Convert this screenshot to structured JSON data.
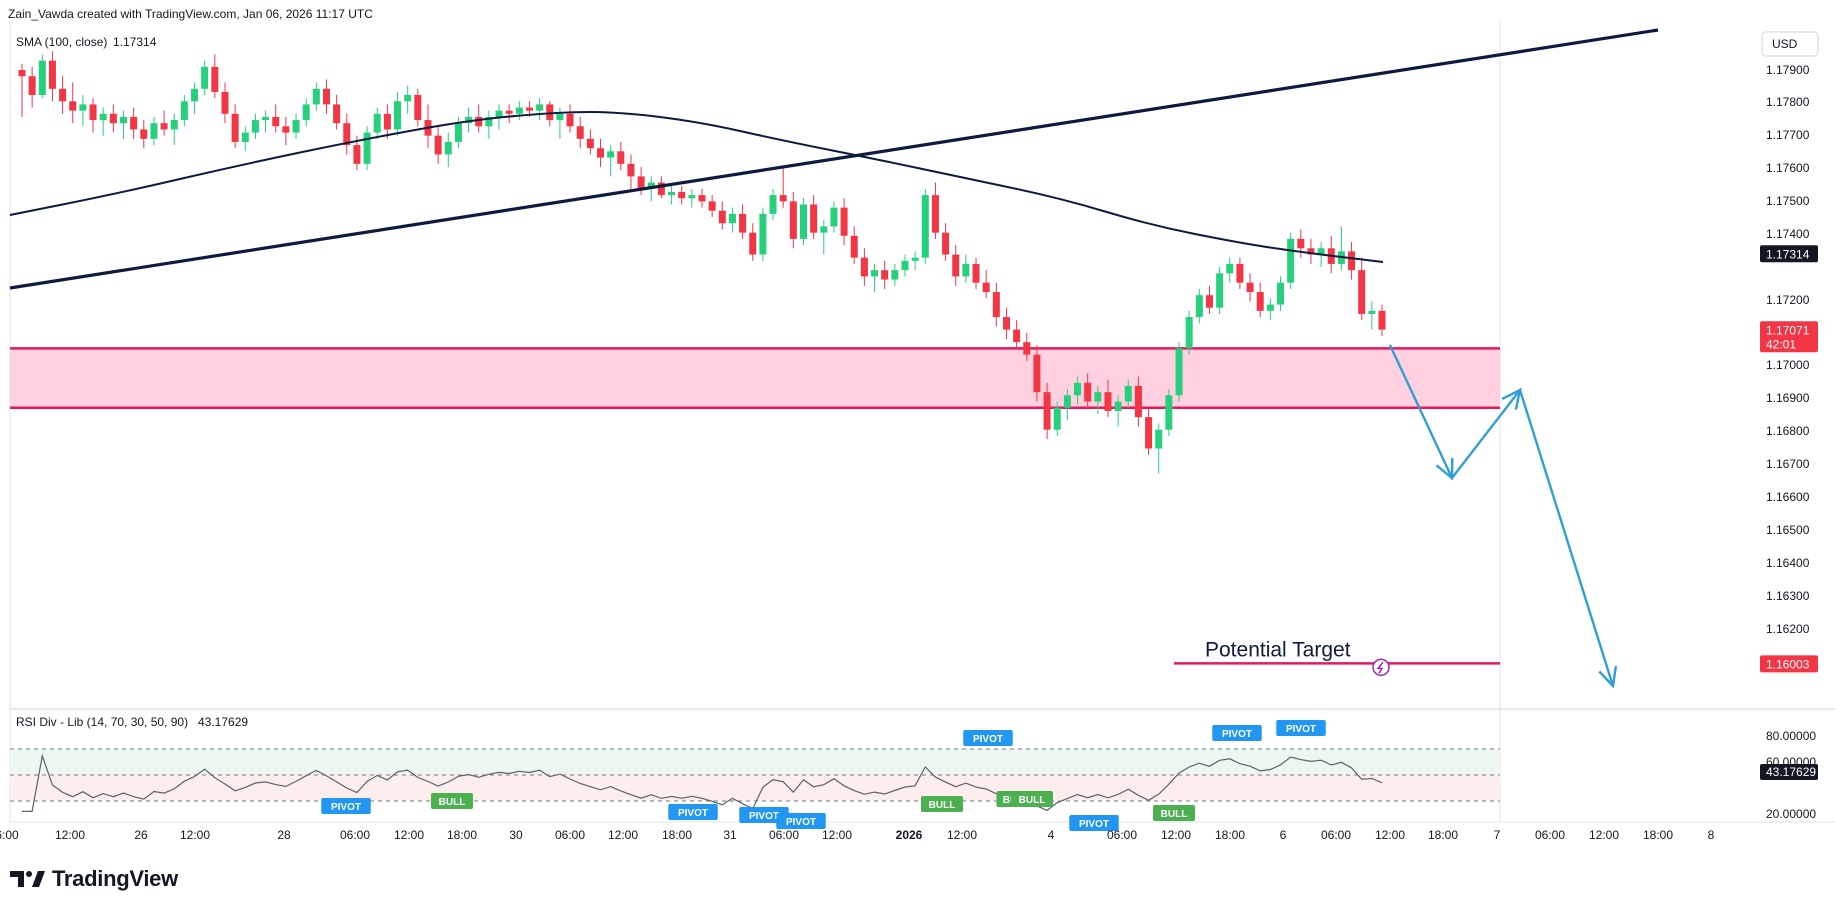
{
  "header": {
    "credit": "Zain_Vawda created with TradingView.com, Jan 06, 2026 11:17 UTC"
  },
  "indicator": {
    "label": "SMA (100, close)",
    "value": "1.17314"
  },
  "currency": "USD",
  "price_axis": [
    "1.17900",
    "1.17800",
    "1.17700",
    "1.17600",
    "1.17500",
    "1.17400",
    "1.17200",
    "1.17100",
    "1.17000",
    "1.16900",
    "1.16800",
    "1.16700",
    "1.16600",
    "1.16500",
    "1.16400",
    "1.16300",
    "1.16200",
    "1.16100"
  ],
  "price_tags": {
    "sma": "1.17314",
    "last": "1.17071",
    "countdown": "42:01",
    "target": "1.16003"
  },
  "annotation": {
    "target_label": "Potential Target"
  },
  "rsi": {
    "label": "RSI Div - Lib (14, 70, 30, 50, 90)",
    "value": "43.17629",
    "axis": [
      "80.00000",
      "60.00000",
      "20.00000"
    ],
    "signals": [
      {
        "text": "PIVOT",
        "kind": "pivot"
      },
      {
        "text": "BULL",
        "kind": "bull"
      },
      {
        "text": "PIVOT",
        "kind": "pivot"
      },
      {
        "text": "PIVOT",
        "kind": "pivot"
      },
      {
        "text": "PIVOT",
        "kind": "pivot"
      },
      {
        "text": "BULL",
        "kind": "bull"
      },
      {
        "text": "PIVOT",
        "kind": "pivot"
      },
      {
        "text": "BU",
        "kind": "bull"
      },
      {
        "text": "BULL",
        "kind": "bull"
      },
      {
        "text": "PIVOT",
        "kind": "pivot"
      },
      {
        "text": "BULL",
        "kind": "bull"
      },
      {
        "text": "PIVOT",
        "kind": "pivot"
      },
      {
        "text": "PIVOT",
        "kind": "pivot"
      }
    ]
  },
  "time_axis": [
    "6:00",
    "12:00",
    "26",
    "12:00",
    "28",
    "06:00",
    "12:00",
    "18:00",
    "30",
    "06:00",
    "12:00",
    "18:00",
    "31",
    "06:00",
    "12:00",
    "2026",
    "12:00",
    "4",
    "06:00",
    "12:00",
    "18:00",
    "6",
    "06:00",
    "12:00",
    "18:00",
    "7",
    "06:00",
    "12:00",
    "18:00",
    "8"
  ],
  "brand": {
    "name": "TradingView"
  },
  "colors": {
    "bull": "#089981",
    "bull_candle": "#26d07c",
    "bear": "#f23645",
    "sma": "#0d1b3e",
    "zone_fill": "#ffd0e0",
    "zone_line": "#e8175d",
    "arrow": "#2f9fd4",
    "pivot_badge": "#2196f3",
    "bull_badge": "#4caf50",
    "tag_dark": "#131722",
    "tag_red": "#f23645"
  },
  "chart_data": {
    "type": "candlestick",
    "instrument_quote": "USD",
    "ylim": [
      1.159,
      1.18
    ],
    "sma_last": 1.17314,
    "last_price": 1.17071,
    "target_price": 1.16003,
    "ohlc": [
      [
        1.179,
        1.1792,
        1.1775,
        1.1788
      ],
      [
        1.1788,
        1.1791,
        1.1778,
        1.1782
      ],
      [
        1.1782,
        1.1795,
        1.1781,
        1.1793
      ],
      [
        1.1793,
        1.1796,
        1.178,
        1.1784
      ],
      [
        1.1784,
        1.1788,
        1.1776,
        1.178
      ],
      [
        1.178,
        1.1786,
        1.1773,
        1.1777
      ],
      [
        1.1777,
        1.1782,
        1.1772,
        1.1779
      ],
      [
        1.1779,
        1.1781,
        1.177,
        1.1774
      ],
      [
        1.1774,
        1.1778,
        1.1769,
        1.1776
      ],
      [
        1.1776,
        1.1779,
        1.177,
        1.1773
      ],
      [
        1.1773,
        1.1777,
        1.1768,
        1.1775
      ],
      [
        1.1775,
        1.1778,
        1.1768,
        1.1771
      ],
      [
        1.1771,
        1.1774,
        1.1765,
        1.1768
      ],
      [
        1.1768,
        1.1775,
        1.1766,
        1.1773
      ],
      [
        1.1773,
        1.1777,
        1.1769,
        1.1771
      ],
      [
        1.1771,
        1.1776,
        1.1766,
        1.1774
      ],
      [
        1.1774,
        1.1782,
        1.1772,
        1.178
      ],
      [
        1.178,
        1.1786,
        1.1776,
        1.1784
      ],
      [
        1.1784,
        1.1793,
        1.1782,
        1.1791
      ],
      [
        1.1791,
        1.1795,
        1.1781,
        1.1783
      ],
      [
        1.1783,
        1.1786,
        1.1773,
        1.1776
      ],
      [
        1.1776,
        1.1779,
        1.1765,
        1.1767
      ],
      [
        1.1767,
        1.1772,
        1.1764,
        1.177
      ],
      [
        1.177,
        1.1776,
        1.1768,
        1.1774
      ],
      [
        1.1774,
        1.1777,
        1.177,
        1.1775
      ],
      [
        1.1775,
        1.1779,
        1.177,
        1.1772
      ],
      [
        1.1772,
        1.1775,
        1.1766,
        1.177
      ],
      [
        1.177,
        1.1776,
        1.1768,
        1.1774
      ],
      [
        1.1774,
        1.1781,
        1.1772,
        1.1779
      ],
      [
        1.1779,
        1.1786,
        1.1777,
        1.1784
      ],
      [
        1.1784,
        1.1787,
        1.1776,
        1.1779
      ],
      [
        1.1779,
        1.1782,
        1.1771,
        1.1773
      ],
      [
        1.1773,
        1.1776,
        1.1763,
        1.1766
      ],
      [
        1.1766,
        1.1769,
        1.1758,
        1.176
      ],
      [
        1.176,
        1.1772,
        1.1758,
        1.177
      ],
      [
        1.177,
        1.1778,
        1.1768,
        1.1776
      ],
      [
        1.1776,
        1.1779,
        1.1768,
        1.1771
      ],
      [
        1.1771,
        1.1783,
        1.1769,
        1.178
      ],
      [
        1.178,
        1.1785,
        1.1776,
        1.1782
      ],
      [
        1.1782,
        1.1784,
        1.1772,
        1.1774
      ],
      [
        1.1774,
        1.1779,
        1.1765,
        1.1769
      ],
      [
        1.1769,
        1.1772,
        1.176,
        1.1763
      ],
      [
        1.1763,
        1.177,
        1.1759,
        1.1767
      ],
      [
        1.1767,
        1.1775,
        1.1765,
        1.1773
      ],
      [
        1.1773,
        1.1778,
        1.177,
        1.1775
      ],
      [
        1.1775,
        1.1779,
        1.177,
        1.1772
      ],
      [
        1.1772,
        1.1777,
        1.1768,
        1.1775
      ],
      [
        1.1775,
        1.1779,
        1.1771,
        1.1777
      ],
      [
        1.1777,
        1.1779,
        1.1773,
        1.1776
      ],
      [
        1.1776,
        1.178,
        1.1774,
        1.1778
      ],
      [
        1.1778,
        1.178,
        1.1775,
        1.1777
      ],
      [
        1.1777,
        1.1781,
        1.1774,
        1.1779
      ],
      [
        1.1779,
        1.178,
        1.1772,
        1.1774
      ],
      [
        1.1774,
        1.1778,
        1.1768,
        1.1776
      ],
      [
        1.1776,
        1.1779,
        1.177,
        1.1772
      ],
      [
        1.1772,
        1.1775,
        1.1765,
        1.1768
      ],
      [
        1.1768,
        1.1771,
        1.1763,
        1.1765
      ],
      [
        1.1765,
        1.1768,
        1.1759,
        1.1762
      ],
      [
        1.1762,
        1.1766,
        1.1756,
        1.1764
      ],
      [
        1.1764,
        1.1767,
        1.1758,
        1.176
      ],
      [
        1.176,
        1.1763,
        1.1752,
        1.1756
      ],
      [
        1.1756,
        1.1759,
        1.175,
        1.1752
      ],
      [
        1.1752,
        1.1756,
        1.1748,
        1.1754
      ],
      [
        1.1754,
        1.1756,
        1.1749,
        1.175
      ],
      [
        1.175,
        1.1753,
        1.1747,
        1.1751
      ],
      [
        1.1751,
        1.1753,
        1.1747,
        1.1749
      ],
      [
        1.1749,
        1.1752,
        1.1746,
        1.175
      ],
      [
        1.175,
        1.1752,
        1.1746,
        1.1748
      ],
      [
        1.1748,
        1.175,
        1.1743,
        1.1745
      ],
      [
        1.1745,
        1.1748,
        1.1739,
        1.1741
      ],
      [
        1.1741,
        1.1746,
        1.1738,
        1.1744
      ],
      [
        1.1744,
        1.1747,
        1.1736,
        1.1738
      ],
      [
        1.1738,
        1.1741,
        1.1729,
        1.1731
      ],
      [
        1.1731,
        1.1746,
        1.1729,
        1.1744
      ],
      [
        1.1744,
        1.1752,
        1.1742,
        1.175
      ],
      [
        1.175,
        1.1759,
        1.1746,
        1.1748
      ],
      [
        1.1748,
        1.1751,
        1.1733,
        1.1736
      ],
      [
        1.1736,
        1.1749,
        1.1734,
        1.1747
      ],
      [
        1.1747,
        1.175,
        1.1736,
        1.1738
      ],
      [
        1.1738,
        1.1742,
        1.1731,
        1.174
      ],
      [
        1.174,
        1.1748,
        1.1738,
        1.1746
      ],
      [
        1.1746,
        1.1749,
        1.1734,
        1.1737
      ],
      [
        1.1737,
        1.174,
        1.1728,
        1.173
      ],
      [
        1.173,
        1.1733,
        1.1721,
        1.1724
      ],
      [
        1.1724,
        1.1728,
        1.1719,
        1.1726
      ],
      [
        1.1726,
        1.1729,
        1.172,
        1.1723
      ],
      [
        1.1723,
        1.1728,
        1.1721,
        1.1726
      ],
      [
        1.1726,
        1.1731,
        1.1724,
        1.1729
      ],
      [
        1.1729,
        1.1732,
        1.1726,
        1.173
      ],
      [
        1.173,
        1.1752,
        1.1728,
        1.175
      ],
      [
        1.175,
        1.1754,
        1.1736,
        1.1738
      ],
      [
        1.1738,
        1.1741,
        1.1729,
        1.1731
      ],
      [
        1.1731,
        1.1734,
        1.1721,
        1.1724
      ],
      [
        1.1724,
        1.1731,
        1.1722,
        1.1728
      ],
      [
        1.1728,
        1.173,
        1.172,
        1.1722
      ],
      [
        1.1722,
        1.1726,
        1.1717,
        1.1719
      ],
      [
        1.1719,
        1.1722,
        1.1708,
        1.1711
      ],
      [
        1.1711,
        1.1714,
        1.1704,
        1.1707
      ],
      [
        1.1707,
        1.171,
        1.1701,
        1.1703
      ],
      [
        1.1703,
        1.1706,
        1.1697,
        1.1699
      ],
      [
        1.1699,
        1.1702,
        1.1684,
        1.1687
      ],
      [
        1.1687,
        1.169,
        1.1672,
        1.1675
      ],
      [
        1.1675,
        1.1684,
        1.1673,
        1.1682
      ],
      [
        1.1682,
        1.1688,
        1.1678,
        1.1686
      ],
      [
        1.1686,
        1.1692,
        1.1683,
        1.169
      ],
      [
        1.169,
        1.1693,
        1.1682,
        1.1684
      ],
      [
        1.1684,
        1.1689,
        1.168,
        1.1687
      ],
      [
        1.1687,
        1.1691,
        1.1679,
        1.1681
      ],
      [
        1.1681,
        1.1686,
        1.1676,
        1.1684
      ],
      [
        1.1684,
        1.1691,
        1.1682,
        1.1689
      ],
      [
        1.1689,
        1.1692,
        1.1676,
        1.1679
      ],
      [
        1.1679,
        1.1682,
        1.1667,
        1.1669
      ],
      [
        1.1669,
        1.1677,
        1.1661,
        1.1675
      ],
      [
        1.1675,
        1.1688,
        1.1673,
        1.1686
      ],
      [
        1.1686,
        1.1703,
        1.1684,
        1.1701
      ],
      [
        1.1701,
        1.1713,
        1.1699,
        1.1711
      ],
      [
        1.1711,
        1.172,
        1.1709,
        1.1718
      ],
      [
        1.1718,
        1.1721,
        1.1712,
        1.1714
      ],
      [
        1.1714,
        1.1727,
        1.1712,
        1.1725
      ],
      [
        1.1725,
        1.173,
        1.1722,
        1.1728
      ],
      [
        1.1728,
        1.173,
        1.172,
        1.1722
      ],
      [
        1.1722,
        1.1725,
        1.1716,
        1.1719
      ],
      [
        1.1719,
        1.1722,
        1.1711,
        1.1713
      ],
      [
        1.1713,
        1.1717,
        1.171,
        1.1715
      ],
      [
        1.1715,
        1.1724,
        1.1713,
        1.1722
      ],
      [
        1.1722,
        1.1738,
        1.172,
        1.1736
      ],
      [
        1.1736,
        1.1739,
        1.173,
        1.1733
      ],
      [
        1.1733,
        1.1736,
        1.1728,
        1.1731
      ],
      [
        1.1731,
        1.1735,
        1.1727,
        1.1733
      ],
      [
        1.1733,
        1.1737,
        1.1725,
        1.1728
      ],
      [
        1.1728,
        1.174,
        1.1726,
        1.1732
      ],
      [
        1.1732,
        1.1735,
        1.1723,
        1.1726
      ],
      [
        1.1726,
        1.173,
        1.171,
        1.1712
      ],
      [
        1.1712,
        1.1716,
        1.1707,
        1.1713
      ],
      [
        1.1713,
        1.1715,
        1.1705,
        1.1707
      ]
    ]
  }
}
